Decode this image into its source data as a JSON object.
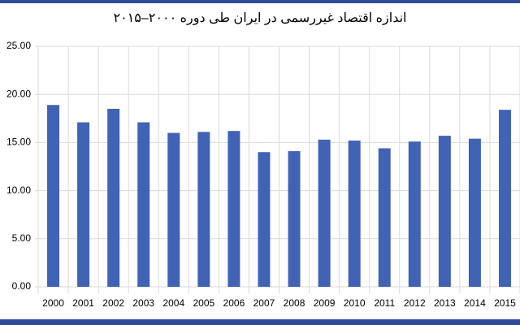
{
  "chart_data": {
    "type": "bar",
    "title": "اندازه اقتصاد غیررسمی در ایران طی دوره ۲۰۰۰–۲۰۱۵",
    "categories": [
      "2000",
      "2001",
      "2002",
      "2003",
      "2004",
      "2005",
      "2006",
      "2007",
      "2008",
      "2009",
      "2010",
      "2011",
      "2012",
      "2013",
      "2014",
      "2015"
    ],
    "values": [
      18.9,
      17.1,
      18.5,
      17.1,
      16.0,
      16.1,
      16.2,
      14.0,
      14.1,
      15.3,
      15.2,
      14.4,
      15.1,
      15.7,
      15.4,
      18.4
    ],
    "color": "#4163b5",
    "ylim": [
      0,
      25
    ],
    "yticks": [
      {
        "value": 0,
        "label": "0.00"
      },
      {
        "value": 5,
        "label": "5.00"
      },
      {
        "value": 10,
        "label": "10.00"
      },
      {
        "value": 15,
        "label": "15.00"
      },
      {
        "value": 20,
        "label": "20.00"
      },
      {
        "value": 25,
        "label": "25.00"
      }
    ],
    "grid": true
  }
}
